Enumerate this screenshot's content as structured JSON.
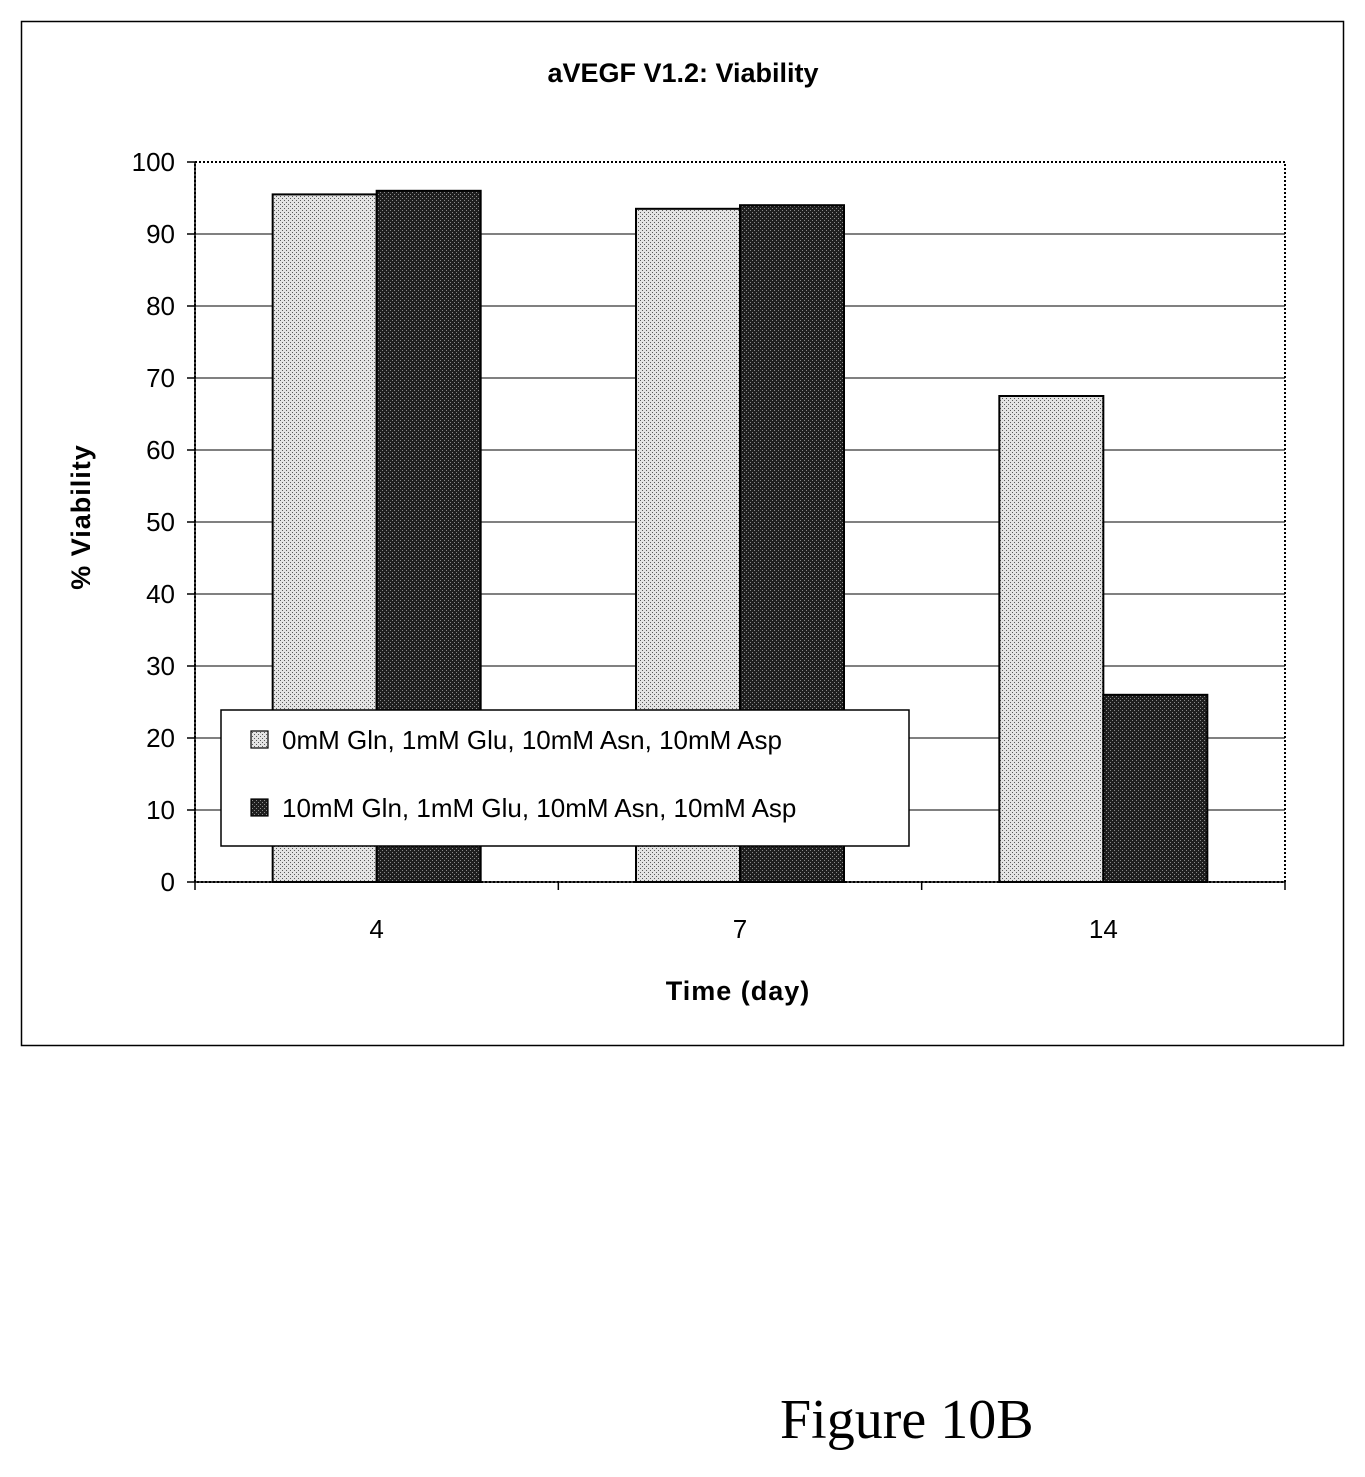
{
  "figure_caption": "Figure 10B",
  "chart_data": {
    "type": "bar",
    "title": "aVEGF V1.2: Viability",
    "xlabel": "Time (day)",
    "ylabel": "% Viability",
    "categories": [
      "4",
      "7",
      "14"
    ],
    "ylim": [
      0,
      100
    ],
    "yticks": [
      0,
      10,
      20,
      30,
      40,
      50,
      60,
      70,
      80,
      90,
      100
    ],
    "grid": true,
    "legend_position": "lower-left",
    "series": [
      {
        "name": "0mM Gln, 1mM Glu, 10mM Asn, 10mM Asp",
        "values": [
          95.5,
          93.5,
          67.5
        ],
        "fill": "light-dotted",
        "color": "#d6d6d6"
      },
      {
        "name": "10mM Gln, 1mM Glu, 10mM Asn, 10mM Asp",
        "values": [
          96.0,
          94.0,
          26.0
        ],
        "fill": "dark-dotted",
        "color": "#2f2f2f"
      }
    ]
  }
}
